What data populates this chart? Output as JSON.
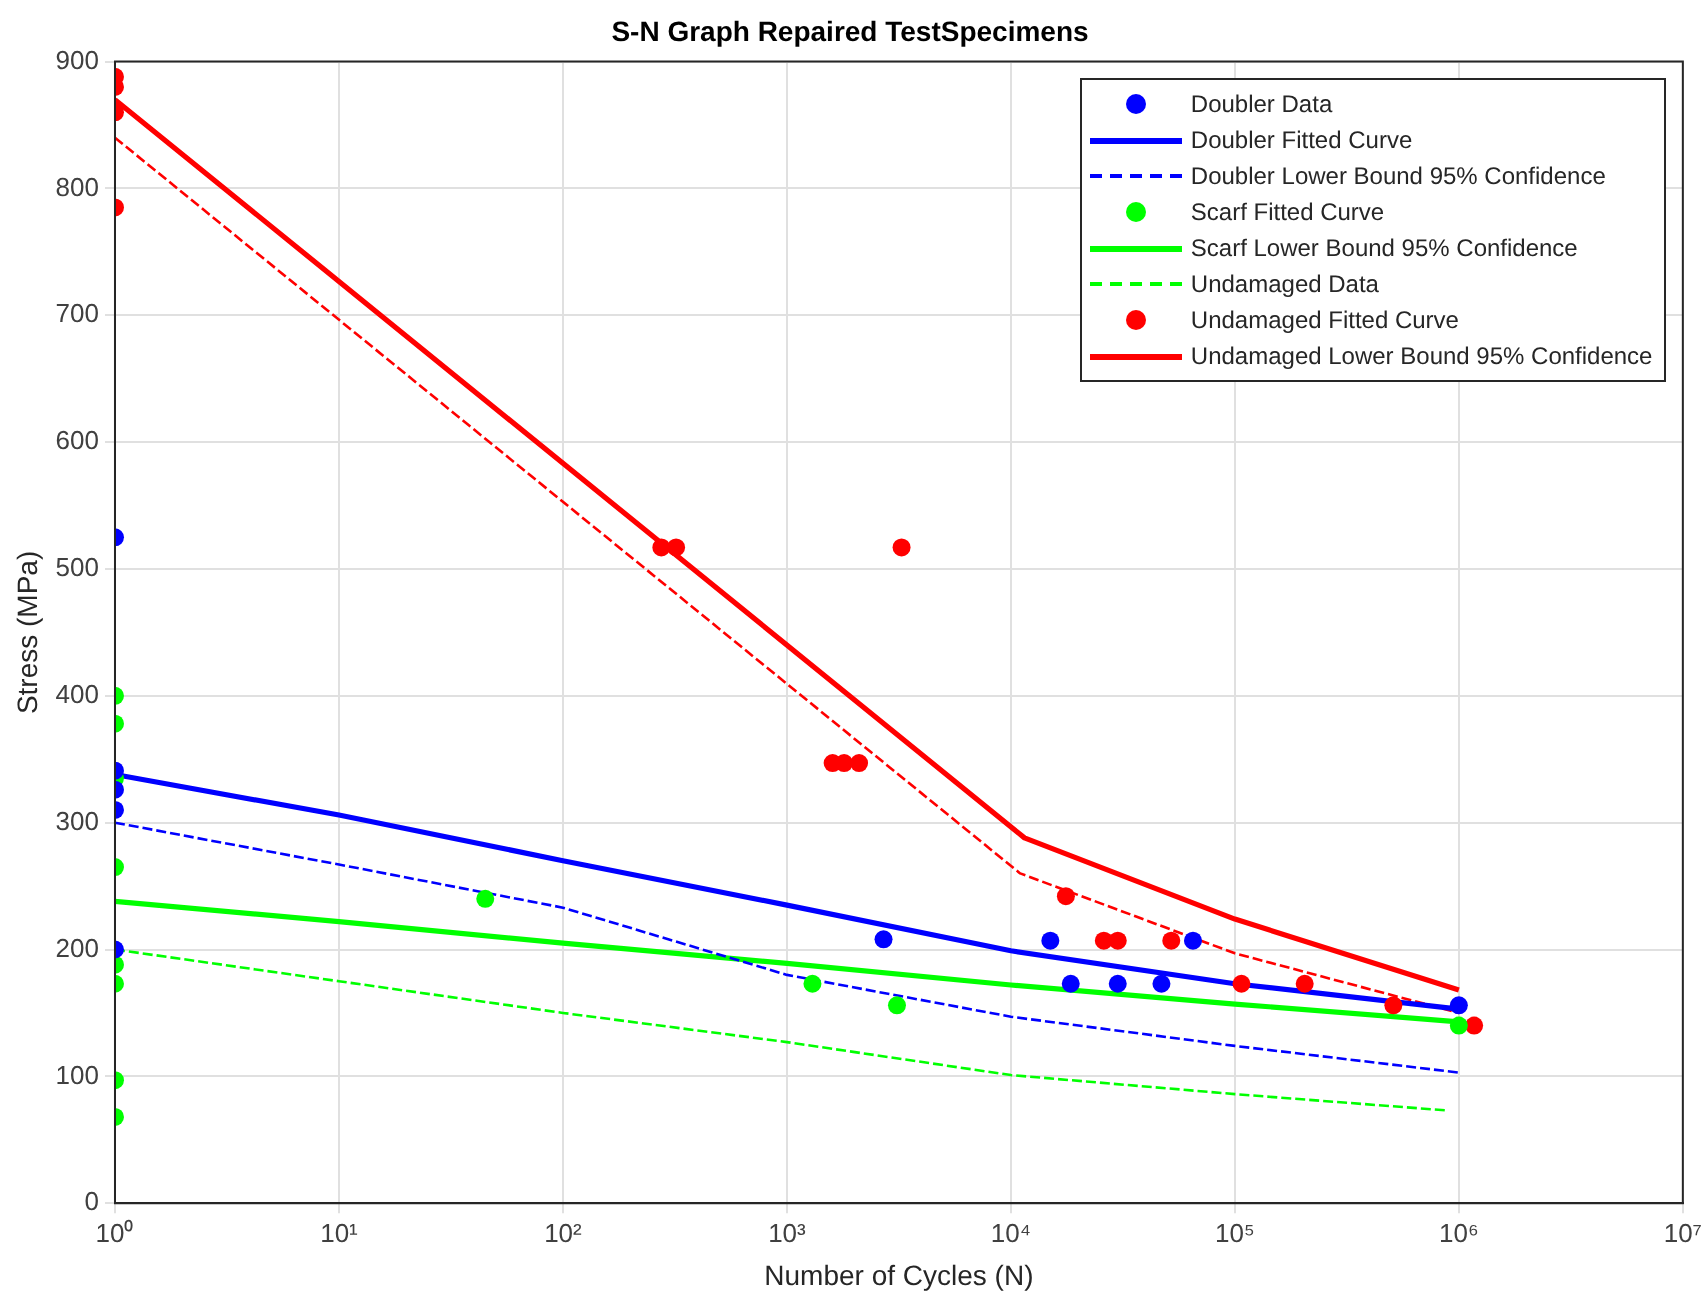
{
  "chart_data": {
    "type": "scatter",
    "title": "S-N Graph Repaired TestSpecimens",
    "xlabel": "Number of Cycles (N)",
    "ylabel": "Stress (MPa)",
    "log": "x",
    "grid": true,
    "legend": "top right",
    "xlim": [
      1,
      10000000
    ],
    "xticks": [
      {
        "value": 1,
        "label": "10⁰"
      },
      {
        "value": 10,
        "label": "10¹"
      },
      {
        "value": 100,
        "label": "10²"
      },
      {
        "value": 1000,
        "label": "10³"
      },
      {
        "value": 10000,
        "label": "10⁴"
      },
      {
        "value": 100000,
        "label": "10⁵"
      },
      {
        "value": 1000000,
        "label": "10⁶"
      },
      {
        "value": 10000000,
        "label": "10⁷"
      }
    ],
    "ylim": [
      0,
      900
    ],
    "yticks": [
      0,
      100,
      200,
      300,
      400,
      500,
      600,
      700,
      800,
      900
    ],
    "series": [
      {
        "name": "Doubler Data",
        "marker": "circle",
        "color": "#0000ff",
        "x": [
          1,
          1,
          1,
          1,
          1,
          2700,
          15000,
          18500,
          30000,
          47000,
          65000,
          1000000
        ],
        "values": [
          525,
          341,
          326,
          310,
          200,
          208,
          207,
          173,
          173,
          173,
          207,
          156
        ]
      },
      {
        "name": "Doubler Fitted Curve",
        "type": "line",
        "marker": "none",
        "line_style": "solid",
        "color": "#0000ff",
        "x": [
          1,
          10,
          100,
          1000,
          10000,
          100000,
          1000000
        ],
        "values": [
          338,
          306,
          270,
          235,
          199,
          173,
          153
        ]
      },
      {
        "name": "Doubler Lower Bound 95% Confidence",
        "type": "line",
        "marker": "none",
        "line_style": "dashed",
        "color": "#0000ff",
        "x": [
          1,
          10,
          100,
          1000,
          10000,
          100000,
          1000000
        ],
        "values": [
          300,
          267,
          233,
          180,
          147,
          124,
          103
        ]
      },
      {
        "name": "Scarf Fitted Curve",
        "marker": "circle",
        "color": "#00ff00",
        "x": [
          1,
          1,
          1,
          1,
          1,
          1,
          1,
          1,
          45,
          1300,
          3100,
          1000000
        ],
        "values": [
          400,
          378,
          335,
          265,
          188,
          173,
          97,
          68,
          240,
          173,
          156,
          140
        ]
      },
      {
        "name": "Scarf Lower Bound 95% Confidence",
        "type": "line",
        "marker": "none",
        "line_style": "solid",
        "color": "#00ff00",
        "x": [
          1,
          10,
          100,
          1000,
          10000,
          100000,
          1000000
        ],
        "values": [
          238,
          222,
          205,
          189,
          172,
          157,
          143
        ]
      },
      {
        "name": "Undamaged Data",
        "type": "line",
        "marker": "none",
        "line_style": "dashed",
        "color": "#00ff00",
        "x": [
          1,
          10,
          100,
          1000,
          10000,
          100000,
          900000
        ],
        "values": [
          200,
          175,
          150,
          127,
          101,
          86,
          73
        ]
      },
      {
        "name": "Undamaged Fitted Curve",
        "marker": "circle",
        "color": "#ff0000",
        "x": [
          1,
          1,
          1,
          1,
          275,
          320,
          3250,
          1600,
          1800,
          2100,
          17600,
          26000,
          30000,
          52000,
          107000,
          205000,
          510000,
          1170000
        ],
        "values": [
          888,
          880,
          860,
          785,
          517,
          517,
          517,
          347,
          347,
          347,
          242,
          207,
          207,
          207,
          173,
          173,
          156,
          140
        ]
      },
      {
        "name": "Undamaged Lower Bound 95% Confidence",
        "type": "line",
        "marker": "none",
        "line_style": "solid",
        "color": "#ff0000",
        "x": [
          1,
          11500,
          100000,
          1000000
        ],
        "values": [
          870,
          288,
          224,
          168
        ]
      },
      {
        "type": "line",
        "marker": "none",
        "line_style": "dashed",
        "color": "#ff0000",
        "x": [
          1,
          11000,
          100000,
          1000000
        ],
        "values": [
          840,
          260,
          197,
          150
        ]
      }
    ]
  }
}
